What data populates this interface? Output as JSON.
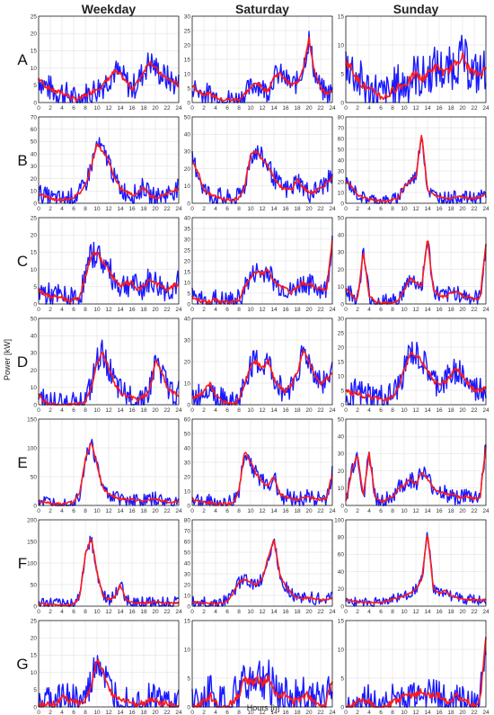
{
  "chart_data": {
    "type": "line",
    "columns": [
      "Weekday",
      "Saturday",
      "Sunday"
    ],
    "rows": [
      "A",
      "B",
      "C",
      "D",
      "E",
      "F",
      "G"
    ],
    "xlabel": "Hours [h]",
    "ylabel": "Power [kW]",
    "x_ticks": [
      0,
      2,
      4,
      6,
      8,
      10,
      12,
      14,
      16,
      18,
      20,
      22,
      24
    ],
    "xlim": [
      0,
      24
    ],
    "grid": true,
    "colors": {
      "envelope": "#1a1aff",
      "mean": "#ff1a1a"
    },
    "x": [
      0,
      1,
      2,
      3,
      4,
      5,
      6,
      7,
      8,
      9,
      10,
      11,
      12,
      13,
      14,
      15,
      16,
      17,
      18,
      19,
      20,
      21,
      22,
      23,
      24
    ],
    "panels": [
      {
        "row": "A",
        "col": "Weekday",
        "ylim": [
          0,
          25
        ],
        "yticks": [
          0,
          5,
          10,
          15,
          20,
          25
        ],
        "series": [
          {
            "values": [
              7,
              5,
              4,
              3,
              3,
              2,
              1,
              1,
              2,
              3,
              4,
              5,
              7,
              9,
              8,
              6,
              4,
              6,
              9,
              12,
              10,
              8,
              7,
              6,
              5
            ],
            "spread": 4
          }
        ]
      },
      {
        "row": "A",
        "col": "Saturday",
        "ylim": [
          0,
          30
        ],
        "yticks": [
          0,
          5,
          10,
          15,
          20,
          25,
          30
        ],
        "series": [
          {
            "values": [
              6,
              4,
              3,
              3,
              2,
              1,
              1,
              1,
              1,
              3,
              5,
              7,
              5,
              4,
              9,
              10,
              8,
              6,
              7,
              12,
              22,
              10,
              5,
              3,
              4
            ],
            "spread": 4
          }
        ]
      },
      {
        "row": "A",
        "col": "Sunday",
        "ylim": [
          0,
          15
        ],
        "yticks": [
          0,
          5,
          10,
          15
        ],
        "series": [
          {
            "values": [
              7,
              6,
              4,
              3,
              2,
              2,
              1,
              1,
              2,
              3,
              3,
              4,
              5,
              4,
              5,
              6,
              6,
              5,
              6,
              7,
              8,
              6,
              5,
              5,
              6
            ],
            "spread": 4
          }
        ]
      },
      {
        "row": "B",
        "col": "Weekday",
        "ylim": [
          0,
          70
        ],
        "yticks": [
          0,
          10,
          20,
          30,
          40,
          50,
          60,
          70
        ],
        "series": [
          {
            "values": [
              8,
              6,
              4,
              3,
              3,
              4,
              5,
              8,
              15,
              30,
              48,
              42,
              35,
              20,
              12,
              9,
              7,
              8,
              14,
              6,
              5,
              6,
              8,
              10,
              12
            ],
            "spread": 8
          }
        ]
      },
      {
        "row": "B",
        "col": "Saturday",
        "ylim": [
          0,
          50
        ],
        "yticks": [
          0,
          10,
          20,
          30,
          40,
          50
        ],
        "series": [
          {
            "values": [
              25,
              18,
              8,
              5,
              4,
              3,
              2,
              2,
              3,
              10,
              28,
              30,
              26,
              22,
              15,
              10,
              8,
              8,
              14,
              9,
              6,
              7,
              9,
              12,
              15
            ],
            "spread": 6
          }
        ]
      },
      {
        "row": "B",
        "col": "Sunday",
        "ylim": [
          0,
          80
        ],
        "yticks": [
          0,
          10,
          20,
          30,
          40,
          50,
          60,
          70,
          80
        ],
        "series": [
          {
            "values": [
              20,
              15,
              8,
              5,
              4,
              3,
              2,
              2,
              3,
              5,
              16,
              20,
              25,
              65,
              12,
              8,
              6,
              5,
              5,
              6,
              6,
              5,
              5,
              6,
              8
            ],
            "spread": 6
          }
        ]
      },
      {
        "row": "C",
        "col": "Weekday",
        "ylim": [
          0,
          25
        ],
        "yticks": [
          0,
          5,
          10,
          15,
          20,
          25
        ],
        "series": [
          {
            "values": [
              4,
              3,
              2,
              2,
              2,
              1,
              1,
              2,
              8,
              14,
              15,
              12,
              10,
              7,
              5,
              6,
              6,
              4,
              5,
              7,
              6,
              5,
              4,
              5,
              6
            ],
            "spread": 4
          }
        ]
      },
      {
        "row": "C",
        "col": "Saturday",
        "ylim": [
          0,
          40
        ],
        "yticks": [
          0,
          5,
          10,
          15,
          20,
          25,
          30,
          35,
          40
        ],
        "series": [
          {
            "values": [
              3,
              2,
              1,
              1,
              2,
              1,
              1,
              1,
              2,
              8,
              12,
              15,
              14,
              16,
              10,
              8,
              7,
              5,
              8,
              10,
              9,
              8,
              7,
              6,
              30
            ],
            "spread": 5
          }
        ]
      },
      {
        "row": "C",
        "col": "Sunday",
        "ylim": [
          0,
          50
        ],
        "yticks": [
          0,
          10,
          20,
          30,
          40,
          50
        ],
        "series": [
          {
            "values": [
              10,
              5,
              2,
              30,
              5,
              1,
              1,
              1,
              1,
              2,
              8,
              15,
              12,
              10,
              38,
              8,
              5,
              4,
              6,
              7,
              5,
              4,
              3,
              3,
              35
            ],
            "spread": 5
          }
        ]
      },
      {
        "row": "D",
        "col": "Weekday",
        "ylim": [
          0,
          50
        ],
        "yticks": [
          0,
          10,
          20,
          30,
          40,
          50
        ],
        "series": [
          {
            "values": [
              6,
              2,
              0,
              0,
              0,
              0,
              0,
              0,
              2,
              10,
              25,
              30,
              22,
              12,
              7,
              5,
              4,
              3,
              5,
              8,
              25,
              20,
              10,
              7,
              6
            ],
            "spread": 8
          }
        ]
      },
      {
        "row": "D",
        "col": "Saturday",
        "ylim": [
          0,
          40
        ],
        "yticks": [
          0,
          10,
          20,
          30,
          40
        ],
        "series": [
          {
            "values": [
              3,
              4,
              6,
              10,
              4,
              2,
              1,
              0,
              2,
              10,
              18,
              20,
              17,
              20,
              12,
              8,
              6,
              9,
              15,
              25,
              20,
              14,
              10,
              12,
              14
            ],
            "spread": 6
          }
        ]
      },
      {
        "row": "D",
        "col": "Sunday",
        "ylim": [
          0,
          30
        ],
        "yticks": [
          0,
          5,
          10,
          15,
          20,
          25,
          30
        ],
        "series": [
          {
            "values": [
              5,
              4,
              4,
              3,
              3,
              2,
              2,
              2,
              3,
              6,
              12,
              18,
              17,
              15,
              12,
              8,
              7,
              8,
              10,
              13,
              10,
              7,
              5,
              5,
              6
            ],
            "spread": 5
          }
        ]
      },
      {
        "row": "E",
        "col": "Weekday",
        "ylim": [
          0,
          150
        ],
        "yticks": [
          0,
          50,
          100,
          150
        ],
        "series": [
          {
            "values": [
              8,
              6,
              4,
              3,
              3,
              4,
              6,
              20,
              80,
              110,
              70,
              30,
              20,
              15,
              12,
              10,
              10,
              9,
              8,
              10,
              12,
              8,
              6,
              6,
              8
            ],
            "spread": 12
          }
        ]
      },
      {
        "row": "E",
        "col": "Saturday",
        "ylim": [
          0,
          60
        ],
        "yticks": [
          0,
          10,
          20,
          30,
          40,
          50,
          60
        ],
        "series": [
          {
            "values": [
              5,
              3,
              2,
              2,
              1,
              1,
              1,
              2,
              10,
              38,
              30,
              22,
              16,
              14,
              20,
              8,
              6,
              5,
              4,
              5,
              6,
              5,
              4,
              5,
              22
            ],
            "spread": 6
          }
        ]
      },
      {
        "row": "E",
        "col": "Sunday",
        "ylim": [
          0,
          50
        ],
        "yticks": [
          0,
          10,
          20,
          30,
          40,
          50
        ],
        "series": [
          {
            "values": [
              2,
              20,
              30,
              5,
              30,
              5,
              2,
              3,
              5,
              10,
              12,
              15,
              12,
              20,
              15,
              10,
              8,
              7,
              6,
              5,
              5,
              5,
              4,
              5,
              35
            ],
            "spread": 5
          }
        ]
      },
      {
        "row": "F",
        "col": "Weekday",
        "ylim": [
          0,
          200
        ],
        "yticks": [
          0,
          50,
          100,
          150,
          200
        ],
        "series": [
          {
            "values": [
              6,
              5,
              4,
              3,
              3,
              3,
              5,
              20,
              120,
              160,
              80,
              25,
              15,
              20,
              50,
              15,
              10,
              8,
              7,
              8,
              10,
              8,
              7,
              6,
              8
            ],
            "spread": 15
          }
        ]
      },
      {
        "row": "F",
        "col": "Saturday",
        "ylim": [
          0,
          80
        ],
        "yticks": [
          0,
          10,
          20,
          30,
          40,
          50,
          60,
          70,
          80
        ],
        "series": [
          {
            "values": [
              4,
              3,
              3,
              3,
              2,
              3,
              5,
              12,
              22,
              25,
              22,
              20,
              25,
              45,
              62,
              30,
              18,
              12,
              8,
              7,
              8,
              7,
              6,
              6,
              8
            ],
            "spread": 6
          }
        ]
      },
      {
        "row": "F",
        "col": "Sunday",
        "ylim": [
          0,
          100
        ],
        "yticks": [
          0,
          20,
          40,
          60,
          80,
          100
        ],
        "series": [
          {
            "values": [
              8,
              6,
              5,
              5,
              4,
              4,
              5,
              6,
              8,
              10,
              12,
              15,
              20,
              30,
              85,
              20,
              15,
              18,
              12,
              10,
              8,
              8,
              7,
              7,
              8
            ],
            "spread": 6
          }
        ]
      },
      {
        "row": "G",
        "col": "Weekday",
        "ylim": [
          0,
          25
        ],
        "yticks": [
          0,
          5,
          10,
          15,
          20,
          25
        ],
        "series": [
          {
            "values": [
              0,
              1,
              1,
              1,
              3,
              2,
              2,
              1,
              2,
              6,
              14,
              10,
              5,
              3,
              2,
              2,
              1,
              1,
              1,
              2,
              2,
              1,
              1,
              0,
              0
            ],
            "spread": 5
          }
        ]
      },
      {
        "row": "G",
        "col": "Saturday",
        "ylim": [
          0,
          15
        ],
        "yticks": [
          0,
          5,
          10,
          15
        ],
        "series": [
          {
            "values": [
              0,
              0,
              1,
              2,
              1,
              0,
              0,
              1,
              2,
              5,
              4,
              5,
              4,
              5,
              3,
              2,
              2,
              1,
              1,
              2,
              2,
              1,
              0,
              1,
              5
            ],
            "spread": 4
          }
        ]
      },
      {
        "row": "G",
        "col": "Sunday",
        "ylim": [
          0,
          15
        ],
        "yticks": [
          0,
          5,
          10,
          15
        ],
        "series": [
          {
            "values": [
              0,
              0,
              1,
              1,
              1,
              0,
              0,
              0,
              1,
              1,
              2,
              2,
              2,
              3,
              2,
              2,
              2,
              1,
              1,
              2,
              1,
              1,
              0,
              1,
              12
            ],
            "spread": 3
          }
        ]
      }
    ]
  }
}
